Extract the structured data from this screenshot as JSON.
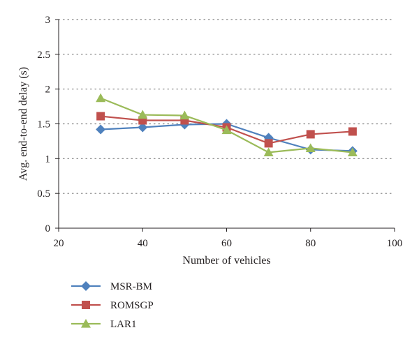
{
  "chart_data": {
    "type": "line",
    "title": "",
    "xlabel": "Number of vehicles",
    "ylabel": "Avg. end-to-end delay (s)",
    "xlim": [
      20,
      100
    ],
    "ylim": [
      0,
      3
    ],
    "x_ticks": [
      20,
      40,
      60,
      80,
      100
    ],
    "y_ticks": [
      0,
      0.5,
      1,
      1.5,
      2,
      2.5,
      3
    ],
    "x_tick_labels": [
      "20",
      "40",
      "60",
      "80",
      "100"
    ],
    "y_tick_labels": [
      "0",
      "0.5",
      "1",
      "1.5",
      "2",
      "2.5",
      "3"
    ],
    "grid": "horizontal dotted",
    "legend_position": "bottom-left",
    "x": [
      30,
      40,
      50,
      60,
      70,
      80,
      90
    ],
    "series": [
      {
        "name": "MSR-BM",
        "marker": "diamond",
        "color": "#4f81bd",
        "values": [
          1.42,
          1.45,
          1.49,
          1.5,
          1.3,
          1.13,
          1.11
        ]
      },
      {
        "name": "ROMSGP",
        "marker": "square",
        "color": "#c0504d",
        "values": [
          1.61,
          1.55,
          1.55,
          1.45,
          1.22,
          1.35,
          1.39
        ]
      },
      {
        "name": "LAR1",
        "marker": "triangle",
        "color": "#9bbb59",
        "values": [
          1.87,
          1.63,
          1.62,
          1.41,
          1.09,
          1.15,
          1.09
        ]
      }
    ]
  }
}
